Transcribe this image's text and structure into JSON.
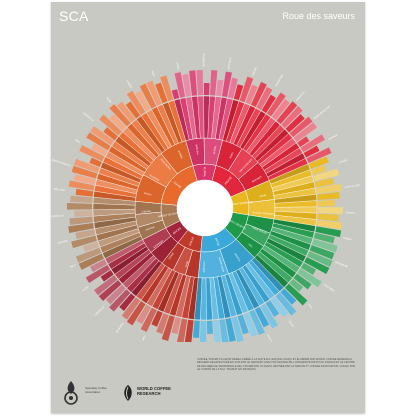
{
  "header": {
    "brand": "SCA",
    "subtitle": "Roue des saveurs"
  },
  "wheel": {
    "inner": [
      {
        "label": "FLORAL",
        "color": "#d8356a"
      },
      {
        "label": "FRUITÉ",
        "color": "#e2263b"
      },
      {
        "label": "AIGRE/ FERMENTÉ",
        "color": "#e9b81e"
      },
      {
        "label": "VERT/ VÉGÉTAL",
        "color": "#1f9a4b"
      },
      {
        "label": "AUTRE",
        "color": "#3aa8d8"
      },
      {
        "label": "GRILLÉ",
        "color": "#c0392b"
      },
      {
        "label": "ÉPICES",
        "color": "#a4243b"
      },
      {
        "label": "NOISETTE/ CACAO",
        "color": "#a87a53"
      },
      {
        "label": "SUCRÉ",
        "color": "#e86a2d"
      }
    ],
    "middle_labels": [
      "THÉ NOIR",
      "FLORAL",
      "BAIES",
      "FRUITS SÉCHÉS",
      "AGRUMES",
      "AIGRE",
      "ALCOOL/ FERMENTÉ",
      "HUILE D'OLIVE",
      "CRU",
      "VÉGÉTAL",
      "PAPIER/ MOISI",
      "CHIMIQUE",
      "TABAC",
      "BRÛLÉ",
      "CÉRÉALES",
      "PIQUANT",
      "BRUNES",
      "CACAO",
      "NOISETTE",
      "SUCRE ROUX",
      "VANILLE"
    ],
    "outer_labels": [
      "MÛRE",
      "FRAMBOISE",
      "MYRTILLE",
      "FRAISE",
      "RAISIN SEC",
      "PRUNEAU",
      "PAMPLEMOUSSE",
      "ORANGE",
      "CITRON",
      "CITRON VERT",
      "VINEUX",
      "WHISKY",
      "FERMENTÉ",
      "TROP MÛR",
      "POIS",
      "FRAIS",
      "VERT FONCÉ",
      "FOIN",
      "HERBES",
      "CARTON",
      "TERREUX",
      "ANIS",
      "MUSCADE",
      "CANNELLE",
      "CLOU",
      "MALT",
      "AMANDE",
      "CHOCOLAT",
      "MÉLASSE",
      "SIROP D'ÉRABLE",
      "MIEL",
      "CAMOMILLE",
      "ROSE",
      "JASMIN",
      "MAÏS"
    ]
  },
  "footer": {
    "caption": "COFFEE TASTER'S FLAVOR WHEEL CRÉÉE À LA SUITE DU LEXIQUE CONÇU ET ÉLABORÉ PAR WORLD COFFEE RESEARCH. RECHERCHE EFFECTUÉE EN 2016 PAR LE SENSORY ANALYSIS CENTER DE L'UNIVERSITÉ D'ÉTAT DU KANSAS ET LE CENTRE DE RECHERCHE SENSORIELLE DE L'UNIVERSITÉ UC DAVIS. RÉVISÉE PAR LA SPECIALTY COFFEE ASSOCIATION. CONÇU PAR LE COMITÉ DE LA SCA. TRADUIT EN FRANÇAIS.",
    "sca_name": "Specialty Coffee Association",
    "wcr_name": "WORLD COFFEE RESEARCH"
  }
}
